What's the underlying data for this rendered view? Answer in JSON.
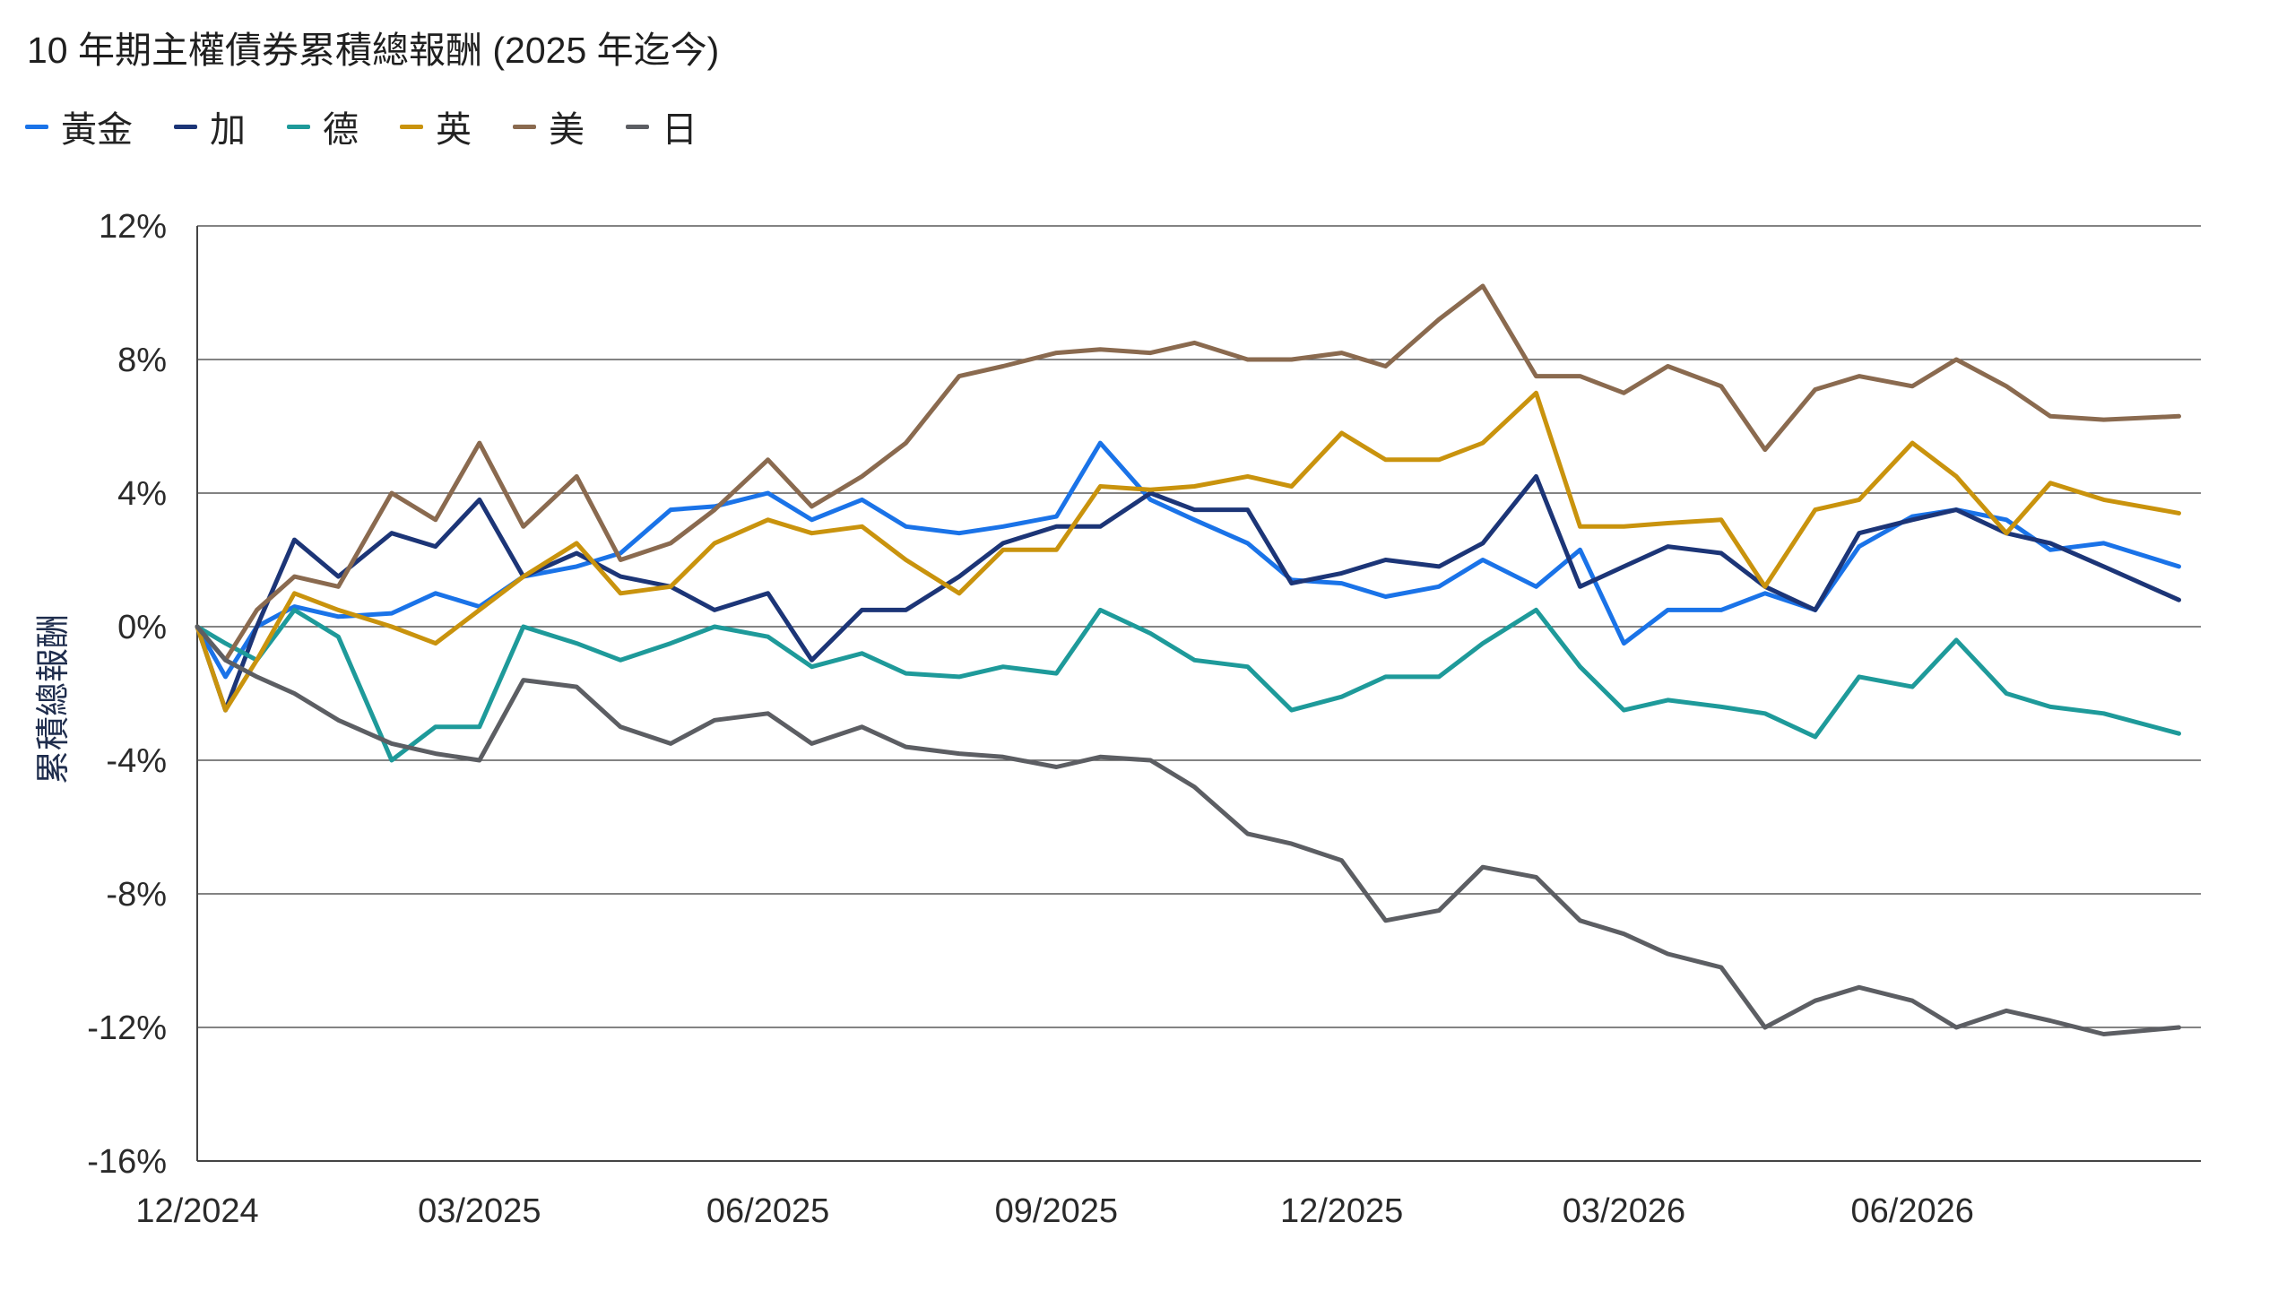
{
  "chart_data": {
    "type": "line",
    "title": "10 年期主權債券累積總報酬 (2025 年迄今)",
    "ylabel": "累積總報酬",
    "xlabel": "",
    "ylim": [
      -16,
      12
    ],
    "yticks": [
      12,
      8,
      4,
      0,
      -4,
      -8,
      -12,
      -16
    ],
    "ytick_labels": [
      "12%",
      "8%",
      "4%",
      "0%",
      "-4%",
      "-8%",
      "-12%",
      "-16%"
    ],
    "xlim": [
      "2024-12-01",
      "2026-09-01"
    ],
    "xticks": [
      "2024-12-01",
      "2025-03-01",
      "2025-06-01",
      "2025-09-01",
      "2025-12-01",
      "2026-03-01",
      "2026-06-01"
    ],
    "xtick_labels": [
      "12/2024",
      "03/2025",
      "06/2025",
      "09/2025",
      "12/2025",
      "03/2026",
      "06/2026"
    ],
    "grid": "horizontal",
    "legend_position": "top-left",
    "series": [
      {
        "name": "黃金",
        "color": "#1a73e8",
        "x": [
          "2024-12-01",
          "2024-12-10",
          "2024-12-20",
          "2025-01-01",
          "2025-01-15",
          "2025-02-01",
          "2025-02-15",
          "2025-03-01",
          "2025-03-15",
          "2025-04-01",
          "2025-04-15",
          "2025-05-01",
          "2025-05-15",
          "2025-06-01",
          "2025-06-15",
          "2025-07-01",
          "2025-07-15",
          "2025-08-01",
          "2025-08-15",
          "2025-09-01",
          "2025-09-15",
          "2025-10-01",
          "2025-10-15",
          "2025-11-01",
          "2025-11-15",
          "2025-12-01",
          "2025-12-15",
          "2026-01-01",
          "2026-01-15",
          "2026-02-01",
          "2026-02-15",
          "2026-03-01",
          "2026-03-15",
          "2026-04-01",
          "2026-04-15",
          "2026-05-01",
          "2026-05-15",
          "2026-06-01",
          "2026-06-15",
          "2026-07-01",
          "2026-07-15",
          "2026-08-01",
          "2026-08-25"
        ],
        "y": [
          0,
          -1.5,
          0,
          0.6,
          0.3,
          0.4,
          1,
          0.6,
          1.5,
          1.8,
          2.2,
          3.5,
          3.6,
          4,
          3.2,
          3.8,
          3,
          2.8,
          3,
          3.3,
          5.5,
          3.8,
          3.2,
          2.5,
          1.4,
          1.3,
          0.9,
          1.2,
          2,
          1.2,
          2.3,
          -0.5,
          0.5,
          0.5,
          1,
          0.5,
          2.4,
          3.3,
          3.5,
          3.2,
          2.3,
          2.5,
          1.8
        ]
      },
      {
        "name": "加",
        "color": "#1c3577",
        "x": [
          "2024-12-01",
          "2024-12-10",
          "2024-12-20",
          "2025-01-01",
          "2025-01-15",
          "2025-02-01",
          "2025-02-15",
          "2025-03-01",
          "2025-03-15",
          "2025-04-01",
          "2025-04-15",
          "2025-05-01",
          "2025-05-15",
          "2025-06-01",
          "2025-06-15",
          "2025-07-01",
          "2025-07-15",
          "2025-08-01",
          "2025-08-15",
          "2025-09-01",
          "2025-09-15",
          "2025-10-01",
          "2025-10-15",
          "2025-11-01",
          "2025-11-15",
          "2025-12-01",
          "2025-12-15",
          "2026-01-01",
          "2026-01-15",
          "2026-02-01",
          "2026-02-15",
          "2026-03-01",
          "2026-03-15",
          "2026-04-01",
          "2026-04-15",
          "2026-05-01",
          "2026-05-15",
          "2026-06-01",
          "2026-06-15",
          "2026-07-01",
          "2026-07-15",
          "2026-08-01",
          "2026-08-25"
        ],
        "y": [
          0,
          -2.5,
          0,
          2.6,
          1.5,
          2.8,
          2.4,
          3.8,
          1.5,
          2.2,
          1.5,
          1.2,
          0.5,
          1,
          -1,
          0.5,
          0.5,
          1.5,
          2.5,
          3,
          3,
          4,
          3.5,
          3.5,
          1.3,
          1.6,
          2,
          1.8,
          2.5,
          4.5,
          1.2,
          1.8,
          2.4,
          2.2,
          1.2,
          0.5,
          2.8,
          3.2,
          3.5,
          2.8,
          2.5,
          1.8,
          0.8
        ]
      },
      {
        "name": "德",
        "color": "#1e9a9a",
        "x": [
          "2024-12-01",
          "2024-12-10",
          "2024-12-20",
          "2025-01-01",
          "2025-01-15",
          "2025-02-01",
          "2025-02-15",
          "2025-03-01",
          "2025-03-15",
          "2025-04-01",
          "2025-04-15",
          "2025-05-01",
          "2025-05-15",
          "2025-06-01",
          "2025-06-15",
          "2025-07-01",
          "2025-07-15",
          "2025-08-01",
          "2025-08-15",
          "2025-09-01",
          "2025-09-15",
          "2025-10-01",
          "2025-10-15",
          "2025-11-01",
          "2025-11-15",
          "2025-12-01",
          "2025-12-15",
          "2026-01-01",
          "2026-01-15",
          "2026-02-01",
          "2026-02-15",
          "2026-03-01",
          "2026-03-15",
          "2026-04-01",
          "2026-04-15",
          "2026-05-01",
          "2026-05-15",
          "2026-06-01",
          "2026-06-15",
          "2026-07-01",
          "2026-07-15",
          "2026-08-01",
          "2026-08-25"
        ],
        "y": [
          0,
          -0.5,
          -1,
          0.5,
          -0.3,
          -4,
          -3,
          -3,
          0,
          -0.5,
          -1,
          -0.5,
          0,
          -0.3,
          -1.2,
          -0.8,
          -1.4,
          -1.5,
          -1.2,
          -1.4,
          0.5,
          -0.2,
          -1,
          -1.2,
          -2.5,
          -2.1,
          -1.5,
          -1.5,
          -0.5,
          0.5,
          -1.2,
          -2.5,
          -2.2,
          -2.4,
          -2.6,
          -3.3,
          -1.5,
          -1.8,
          -0.4,
          -2,
          -2.4,
          -2.6,
          -3.2
        ]
      },
      {
        "name": "英",
        "color": "#c9930d",
        "x": [
          "2024-12-01",
          "2024-12-10",
          "2024-12-20",
          "2025-01-01",
          "2025-01-15",
          "2025-02-01",
          "2025-02-15",
          "2025-03-01",
          "2025-03-15",
          "2025-04-01",
          "2025-04-15",
          "2025-05-01",
          "2025-05-15",
          "2025-06-01",
          "2025-06-15",
          "2025-07-01",
          "2025-07-15",
          "2025-08-01",
          "2025-08-15",
          "2025-09-01",
          "2025-09-15",
          "2025-10-01",
          "2025-10-15",
          "2025-11-01",
          "2025-11-15",
          "2025-12-01",
          "2025-12-15",
          "2026-01-01",
          "2026-01-15",
          "2026-02-01",
          "2026-02-15",
          "2026-03-01",
          "2026-03-15",
          "2026-04-01",
          "2026-04-15",
          "2026-05-01",
          "2026-05-15",
          "2026-06-01",
          "2026-06-15",
          "2026-07-01",
          "2026-07-15",
          "2026-08-01",
          "2026-08-25"
        ],
        "y": [
          0,
          -2.5,
          -1,
          1,
          0.5,
          0,
          -0.5,
          0.5,
          1.5,
          2.5,
          1,
          1.2,
          2.5,
          3.2,
          2.8,
          3,
          2,
          1,
          2.3,
          2.3,
          4.2,
          4.1,
          4.2,
          4.5,
          4.2,
          5.8,
          5,
          5,
          5.5,
          7,
          3,
          3,
          3.1,
          3.2,
          1.2,
          3.5,
          3.8,
          5.5,
          4.5,
          2.8,
          4.3,
          3.8,
          3.4
        ]
      },
      {
        "name": "美",
        "color": "#8a6a4f",
        "x": [
          "2024-12-01",
          "2024-12-10",
          "2024-12-20",
          "2025-01-01",
          "2025-01-15",
          "2025-02-01",
          "2025-02-15",
          "2025-03-01",
          "2025-03-15",
          "2025-04-01",
          "2025-04-15",
          "2025-05-01",
          "2025-05-15",
          "2025-06-01",
          "2025-06-15",
          "2025-07-01",
          "2025-07-15",
          "2025-08-01",
          "2025-08-15",
          "2025-09-01",
          "2025-09-15",
          "2025-10-01",
          "2025-10-15",
          "2025-11-01",
          "2025-11-15",
          "2025-12-01",
          "2025-12-15",
          "2026-01-01",
          "2026-01-15",
          "2026-02-01",
          "2026-02-15",
          "2026-03-01",
          "2026-03-15",
          "2026-04-01",
          "2026-04-15",
          "2026-05-01",
          "2026-05-15",
          "2026-06-01",
          "2026-06-15",
          "2026-07-01",
          "2026-07-15",
          "2026-08-01",
          "2026-08-25"
        ],
        "y": [
          0,
          -1,
          0.5,
          1.5,
          1.2,
          4,
          3.2,
          5.5,
          3,
          4.5,
          2,
          2.5,
          3.5,
          5,
          3.6,
          4.5,
          5.5,
          7.5,
          7.8,
          8.2,
          8.3,
          8.2,
          8.5,
          8,
          8,
          8.2,
          7.8,
          9.2,
          10.2,
          7.5,
          7.5,
          7,
          7.8,
          7.2,
          5.3,
          7.1,
          7.5,
          7.2,
          8,
          7.2,
          6.3,
          6.2,
          6.3
        ]
      },
      {
        "name": "日",
        "color": "#5c5e63",
        "x": [
          "2024-12-01",
          "2024-12-10",
          "2024-12-20",
          "2025-01-01",
          "2025-01-15",
          "2025-02-01",
          "2025-02-15",
          "2025-03-01",
          "2025-03-15",
          "2025-04-01",
          "2025-04-15",
          "2025-05-01",
          "2025-05-15",
          "2025-06-01",
          "2025-06-15",
          "2025-07-01",
          "2025-07-15",
          "2025-08-01",
          "2025-08-15",
          "2025-09-01",
          "2025-09-15",
          "2025-10-01",
          "2025-10-15",
          "2025-11-01",
          "2025-11-15",
          "2025-12-01",
          "2025-12-15",
          "2026-01-01",
          "2026-01-15",
          "2026-02-01",
          "2026-02-15",
          "2026-03-01",
          "2026-03-15",
          "2026-04-01",
          "2026-04-15",
          "2026-05-01",
          "2026-05-15",
          "2026-06-01",
          "2026-06-15",
          "2026-07-01",
          "2026-07-15",
          "2026-08-01",
          "2026-08-25"
        ],
        "y": [
          0,
          -1,
          -1.5,
          -2,
          -2.8,
          -3.5,
          -3.8,
          -4,
          -1.6,
          -1.8,
          -3,
          -3.5,
          -2.8,
          -2.6,
          -3.5,
          -3,
          -3.6,
          -3.8,
          -3.9,
          -4.2,
          -3.9,
          -4,
          -4.8,
          -6.2,
          -6.5,
          -7,
          -8.8,
          -8.5,
          -7.2,
          -7.5,
          -8.8,
          -9.2,
          -9.8,
          -10.2,
          -12,
          -11.2,
          -10.8,
          -11.2,
          -12,
          -11.5,
          -11.8,
          -12.2,
          -12
        ]
      }
    ]
  }
}
